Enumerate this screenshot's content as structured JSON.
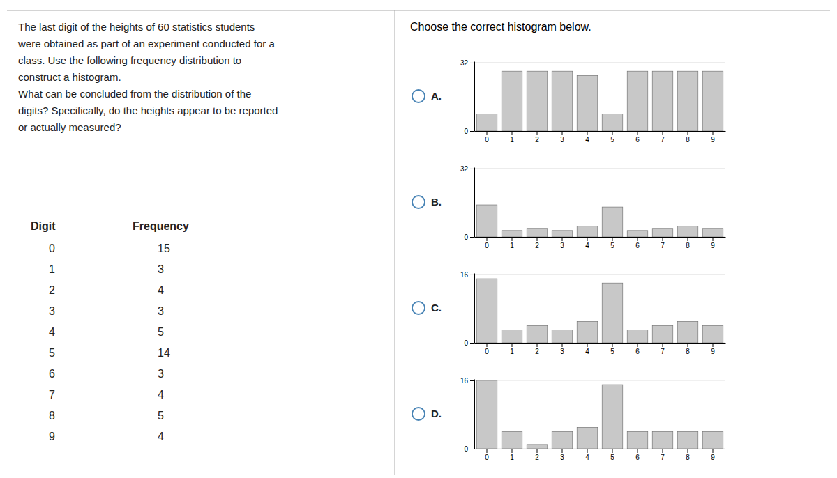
{
  "title": "Choose the correct histogram below.",
  "text_lines": [
    "The last digit of the heights of 60 statistics students",
    "were obtained as part of an experiment conducted for a",
    "class. Use the following frequency distribution to",
    "construct a histogram.",
    "What can be concluded from the distribution of the",
    "digits? Specifically, do the heights appear to be reported",
    "or actually measured?"
  ],
  "table": {
    "header": [
      "Digit",
      "Frequency"
    ],
    "rows": [
      [
        0,
        15
      ],
      [
        1,
        3
      ],
      [
        2,
        4
      ],
      [
        3,
        3
      ],
      [
        4,
        5
      ],
      [
        5,
        14
      ],
      [
        6,
        3
      ],
      [
        7,
        4
      ],
      [
        8,
        5
      ],
      [
        9,
        4
      ]
    ]
  },
  "chart_data": [
    {
      "type": "bar",
      "title": "A.",
      "categories": [
        0,
        1,
        2,
        3,
        4,
        5,
        6,
        7,
        8,
        9
      ],
      "values": [
        8,
        28,
        28,
        28,
        26,
        8,
        28,
        28,
        28,
        28
      ],
      "color": "#c8c8c8",
      "ylim": [
        0,
        32.64
      ],
      "yticks": [
        0,
        32
      ],
      "grid": true
    },
    {
      "type": "bar",
      "title": "B.",
      "categories": [
        0,
        1,
        2,
        3,
        4,
        5,
        6,
        7,
        8,
        9
      ],
      "values": [
        15,
        3,
        4,
        3,
        5,
        14,
        3,
        4,
        5,
        4
      ],
      "color": "#c8c8c8",
      "ylim": [
        0,
        32.64
      ],
      "yticks": [
        0,
        32
      ],
      "grid": true
    },
    {
      "type": "bar",
      "title": "C.",
      "categories": [
        0,
        1,
        2,
        3,
        4,
        5,
        6,
        7,
        8,
        9
      ],
      "values": [
        15,
        3,
        4,
        3,
        5,
        14,
        3,
        4,
        5,
        4
      ],
      "color": "#c8c8c8",
      "ylim": [
        0,
        16.32
      ],
      "yticks": [
        0,
        16
      ],
      "grid": true
    },
    {
      "type": "bar",
      "title": "D.",
      "categories": [
        0,
        1,
        2,
        3,
        4,
        5,
        6,
        7,
        8,
        9
      ],
      "values": [
        16,
        4,
        1,
        4,
        5,
        15,
        4,
        4,
        4,
        4
      ],
      "color": "#c8c8c8",
      "ylim": [
        0,
        16.32
      ],
      "yticks": [
        0,
        16
      ],
      "grid": true
    }
  ]
}
